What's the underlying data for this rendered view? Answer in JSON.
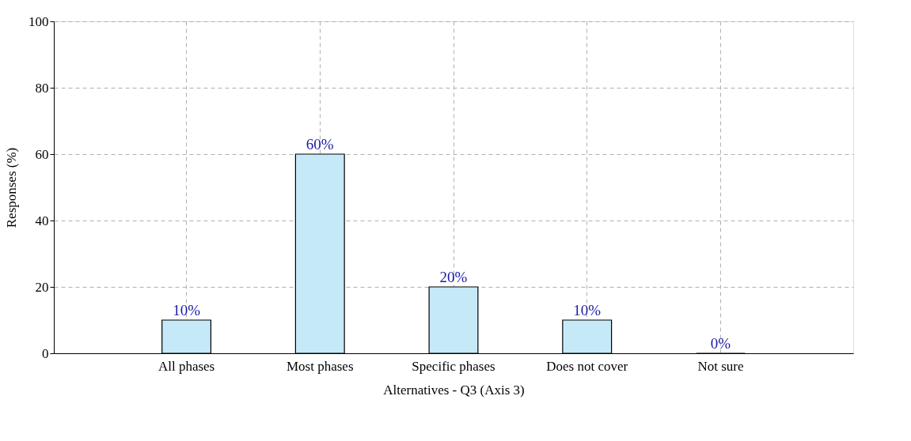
{
  "chart_data": {
    "type": "bar",
    "categories": [
      "All phases",
      "Most phases",
      "Specific phases",
      "Does not cover",
      "Not sure"
    ],
    "values": [
      10,
      60,
      20,
      10,
      0
    ],
    "value_labels": [
      "10%",
      "60%",
      "20%",
      "10%",
      "0%"
    ],
    "color": "#c6e9f8",
    "xlabel": "Alternatives - Q3 (Axis 3)",
    "ylabel": "Responses (%)",
    "ylim": [
      0,
      100
    ],
    "yticks": [
      0,
      20,
      40,
      60,
      80,
      100
    ],
    "grid": true
  }
}
